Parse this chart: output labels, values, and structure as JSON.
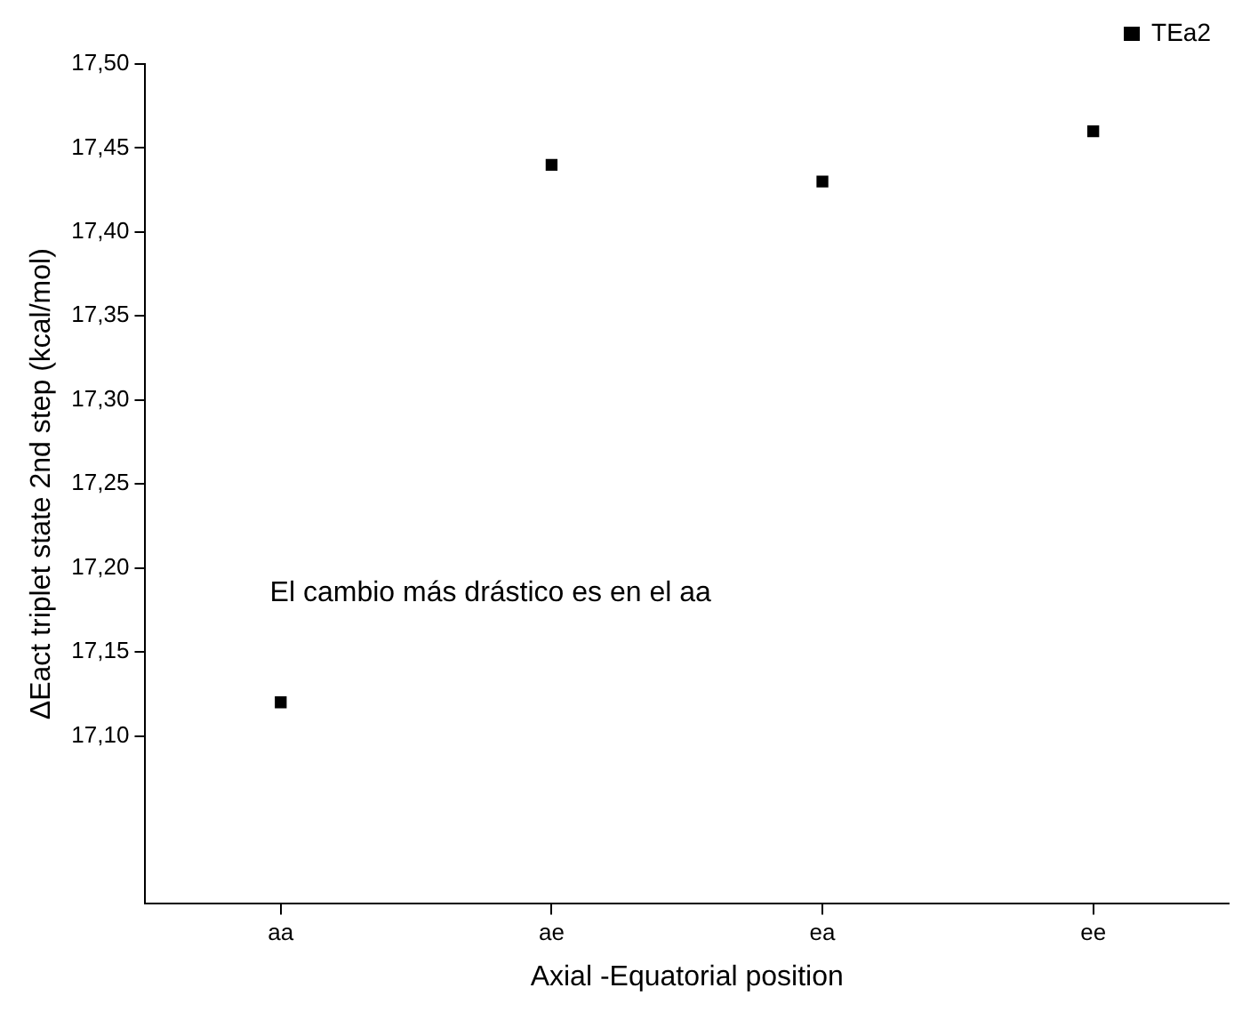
{
  "chart_data": {
    "type": "scatter",
    "xlabel": "Axial -Equatorial position",
    "ylabel": "ΔEact triplet state 2nd step (kcal/mol)",
    "categories": [
      "aa",
      "ae",
      "ea",
      "ee"
    ],
    "series": [
      {
        "name": "TEa2",
        "color": "#000000",
        "values": [
          17.12,
          17.44,
          17.43,
          17.46
        ]
      }
    ],
    "ylim": [
      17.0,
      17.5
    ],
    "yticks": [
      {
        "value": 17.1,
        "label": "17,10"
      },
      {
        "value": 17.15,
        "label": "17,15"
      },
      {
        "value": 17.2,
        "label": "17,20"
      },
      {
        "value": 17.25,
        "label": "17,25"
      },
      {
        "value": 17.3,
        "label": "17,30"
      },
      {
        "value": 17.35,
        "label": "17,35"
      },
      {
        "value": 17.4,
        "label": "17,40"
      },
      {
        "value": 17.45,
        "label": "17,45"
      },
      {
        "value": 17.5,
        "label": "17,50"
      }
    ],
    "annotations": [
      "El cambio más drástico es en el aa"
    ],
    "legend": "top right",
    "marker": "square",
    "grid": false
  }
}
